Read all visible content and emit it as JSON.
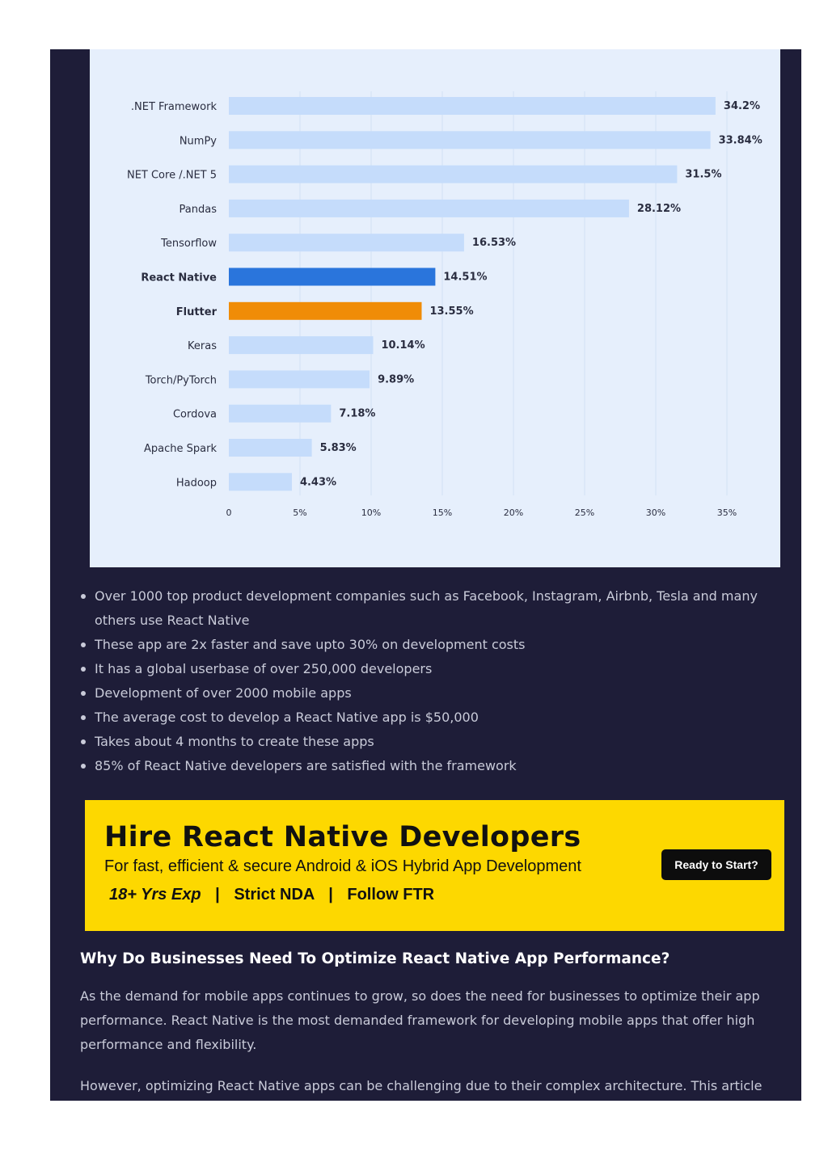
{
  "chart_data": {
    "type": "bar",
    "orientation": "horizontal",
    "categories": [
      ".NET Framework",
      "NumPy",
      "NET Core /.NET 5",
      "Pandas",
      "Tensorflow",
      "React Native",
      "Flutter",
      "Keras",
      "Torch/PyTorch",
      "Cordova",
      "Apache Spark",
      "Hadoop"
    ],
    "values": [
      34.2,
      33.84,
      31.5,
      28.12,
      16.53,
      14.51,
      13.55,
      10.14,
      9.89,
      7.18,
      5.83,
      4.43
    ],
    "value_labels": [
      "34.2%",
      "33.84%",
      "31.5%",
      "28.12%",
      "16.53%",
      "14.51%",
      "13.55%",
      "10.14%",
      "9.89%",
      "7.18%",
      "5.83%",
      "4.43%"
    ],
    "highlighted": [
      "React Native",
      "Flutter"
    ],
    "colors": {
      "default": "#c5dcfb",
      "React Native": "#2a75dc",
      "Flutter": "#f08c07",
      "grid": "#d3e1f5",
      "label": "#2a2d40"
    },
    "x_ticks": [
      "0",
      "5%",
      "10%",
      "15%",
      "20%",
      "25%",
      "30%",
      "35%"
    ],
    "xlim": [
      0,
      35
    ],
    "grid": true
  },
  "bullets": [
    "Over 1000 top product development companies such as Facebook, Instagram, Airbnb, Tesla and many others use React Native",
    " These app are 2x faster and save upto 30% on development costs",
    " It has a global userbase of over 250,000 developers",
    "Development of over 2000 mobile apps",
    " The average cost to develop a React Native app is $50,000",
    "Takes about 4 months to create these apps",
    "85% of React Native developers are satisfied with the framework"
  ],
  "banner": {
    "title": "Hire React Native Developers",
    "subtitle": "For fast, efficient & secure Android & iOS Hybrid App Development",
    "tag_exp": "18+ Yrs Exp",
    "tag_nda": "Strict NDA",
    "tag_follow": "Follow FTR",
    "separator": "|",
    "button_label": "Ready to Start?",
    "background": "#fdd800"
  },
  "section": {
    "heading": "Why Do Businesses Need To Optimize React Native App Performance?",
    "paragraph1": "As the demand for mobile apps continues to grow, so does the need for businesses to optimize their app performance. React Native is the most demanded framework for developing mobile apps that offer high performance and flexibility.",
    "paragraph2": "However, optimizing React Native apps can be challenging due to their complex architecture. This article"
  }
}
